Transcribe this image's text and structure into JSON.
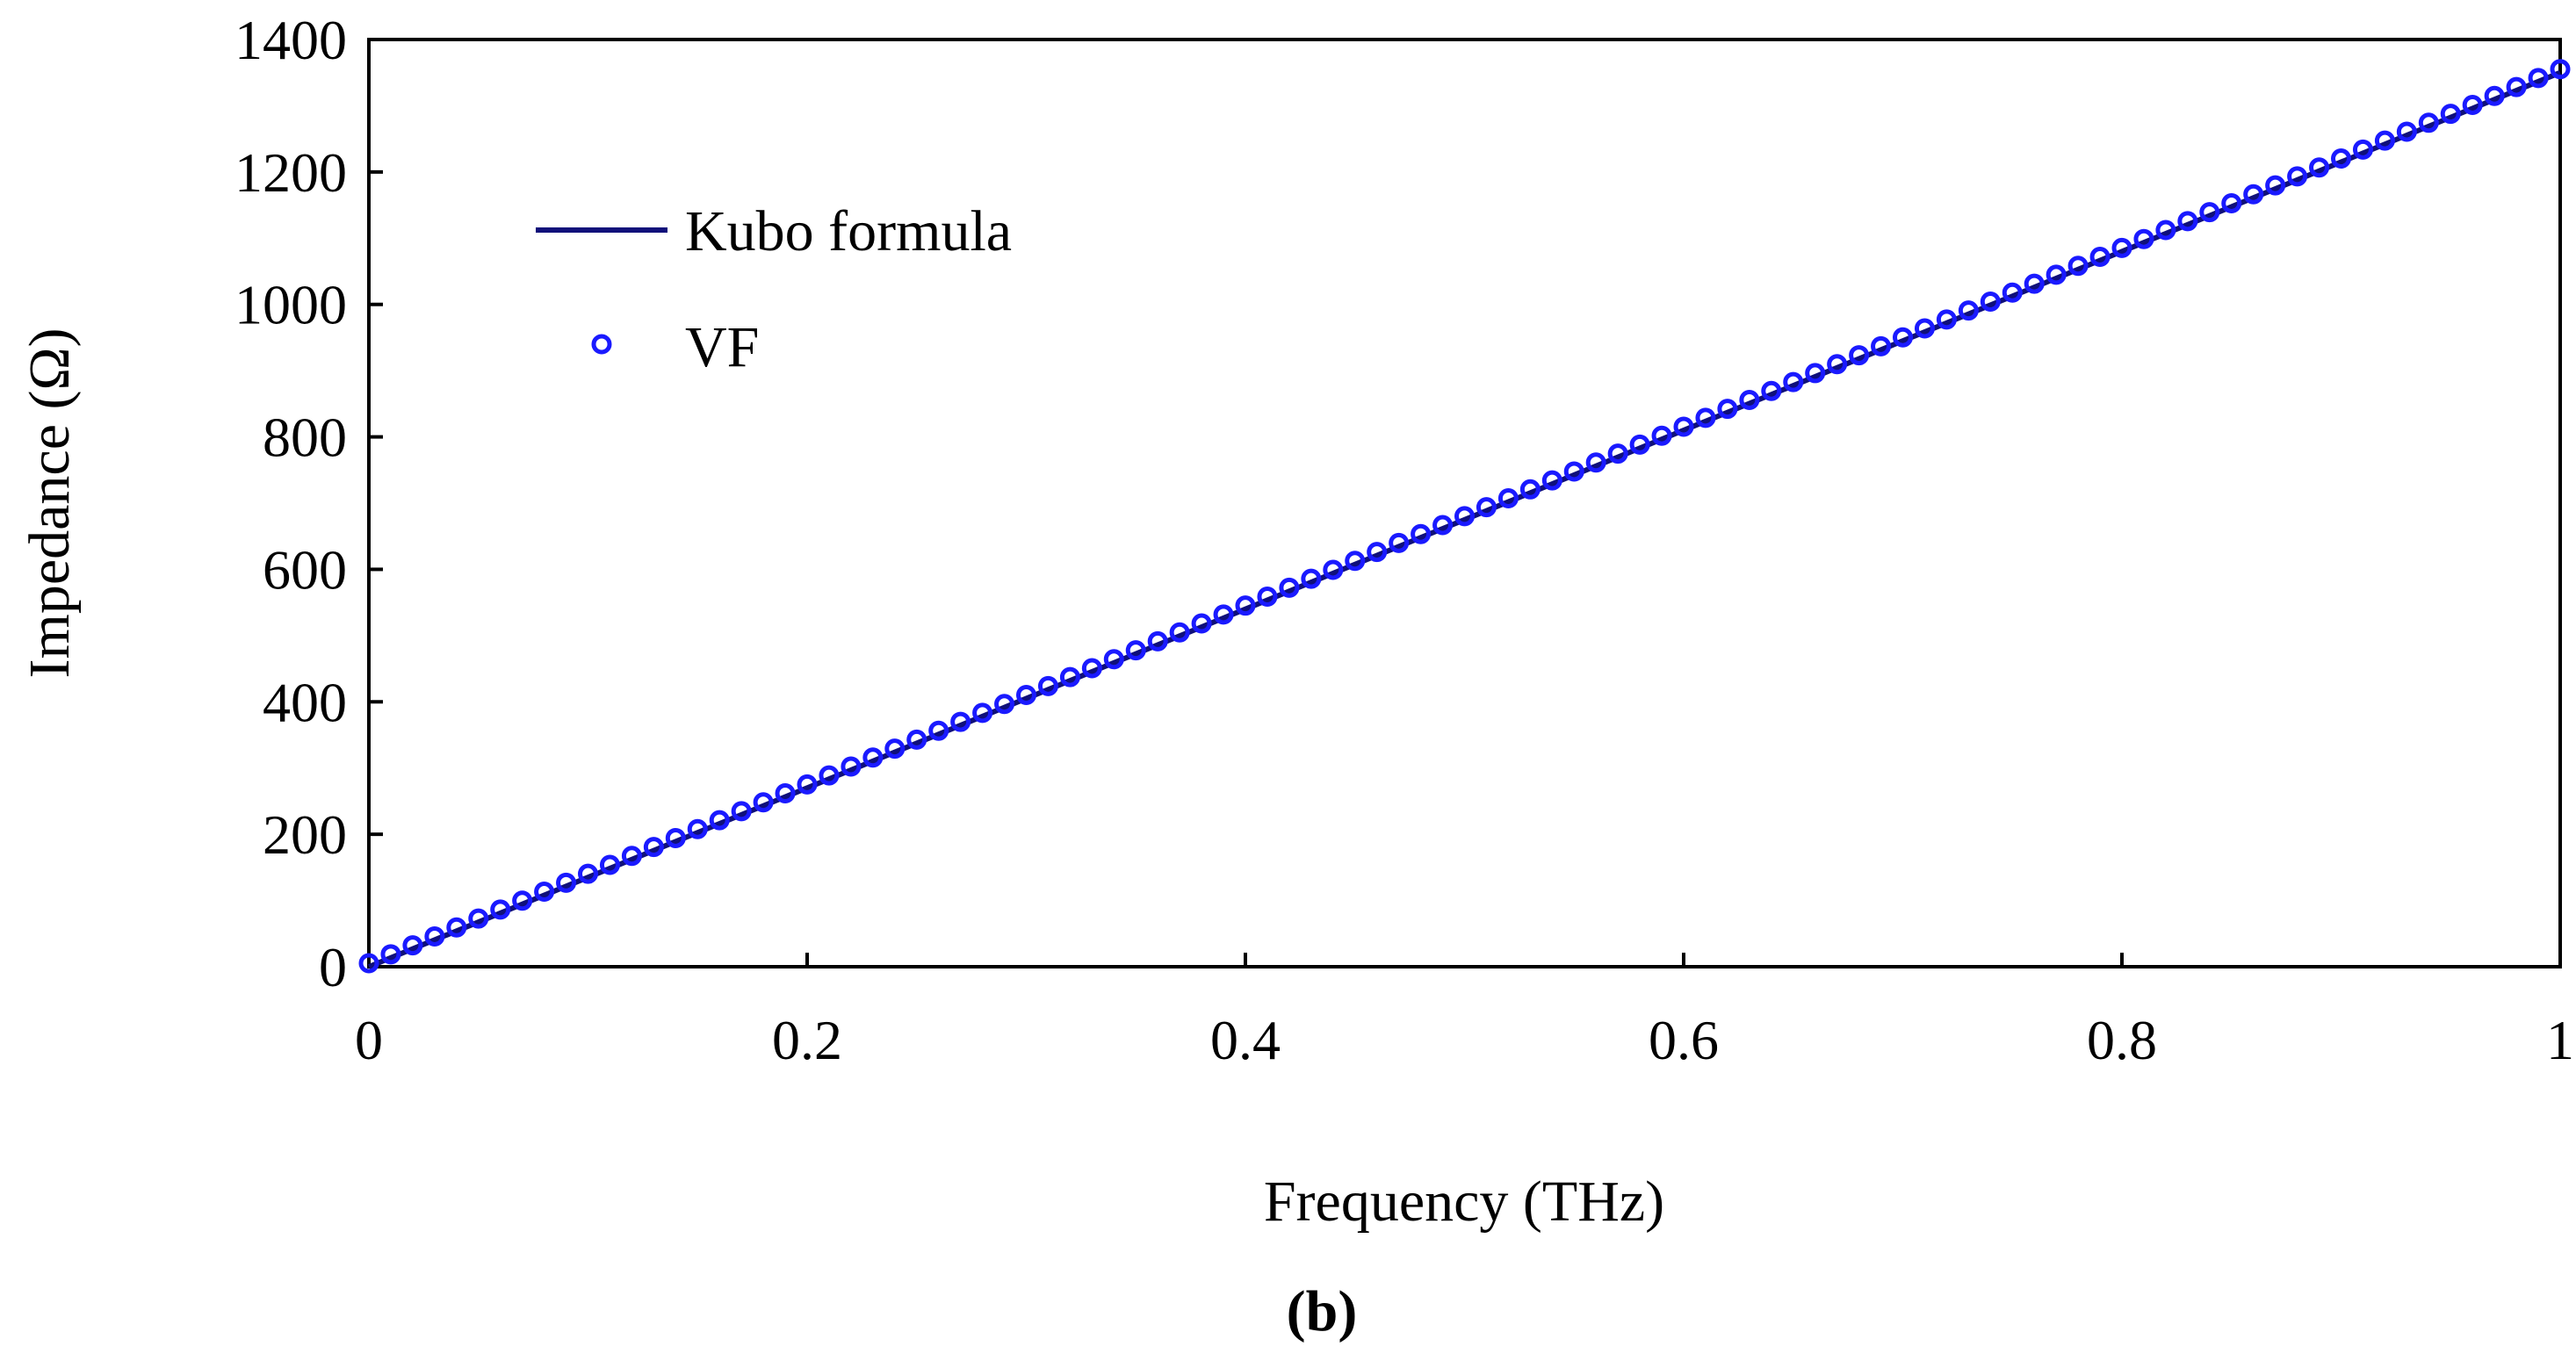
{
  "chart_data": {
    "type": "line",
    "title": "",
    "xlabel": "Frequency (THz)",
    "ylabel": "Impedance (Ω)",
    "xlim": [
      0,
      1
    ],
    "ylim": [
      0,
      1400
    ],
    "x_ticks": [
      0,
      0.2,
      0.4,
      0.6,
      0.8,
      1
    ],
    "x_tick_labels": [
      "0",
      "0.2",
      "0.4",
      "0.6",
      "0.8",
      "1"
    ],
    "y_ticks": [
      0,
      200,
      400,
      600,
      800,
      1000,
      1200,
      1400
    ],
    "y_tick_labels": [
      "0",
      "200",
      "400",
      "600",
      "800",
      "1000",
      "1200",
      "1400"
    ],
    "grid": false,
    "legend_position": "top-left",
    "caption": "(b)",
    "series": [
      {
        "name": "Kubo formula",
        "style": "line",
        "color": "#10107a",
        "x": [
          0,
          1
        ],
        "y": [
          0,
          1350
        ]
      },
      {
        "name": "VF",
        "style": "markers",
        "marker": "open-circle",
        "color": "#1a1aff",
        "x_range": [
          0,
          1
        ],
        "points": 101,
        "y_range": [
          0,
          1350
        ]
      }
    ]
  }
}
